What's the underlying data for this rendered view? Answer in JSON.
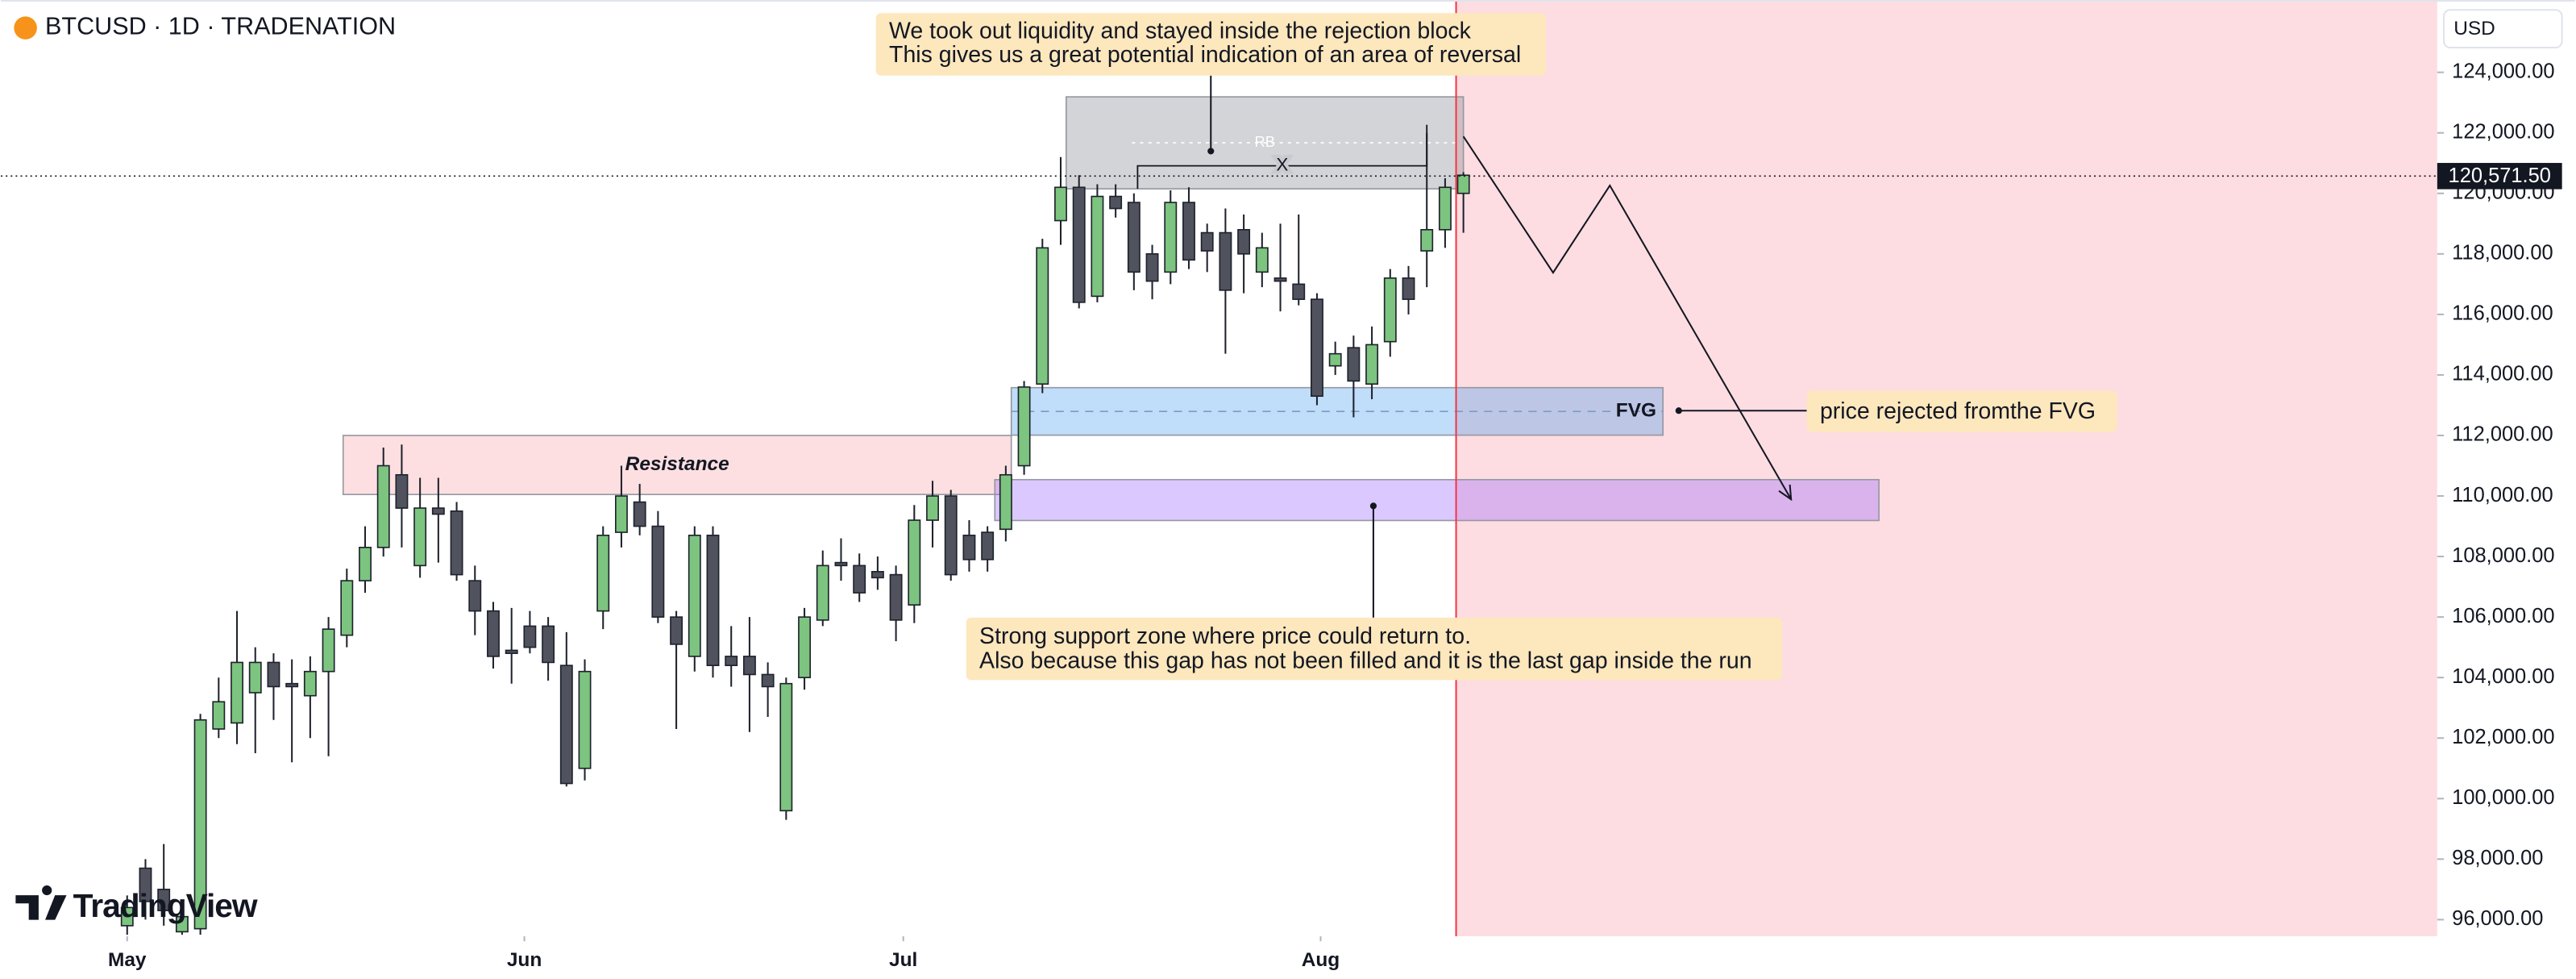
{
  "header": {
    "title": "BTCUSD · 1D · TRADENATION",
    "currency": "USD",
    "logo": "TradingView"
  },
  "chart_data": {
    "type": "candlestick",
    "up_color": "#7cc47f",
    "down_color": "#50535e",
    "outline_color": "#1e222d",
    "ohlc": {
      "open": [
        95800,
        97700,
        97000,
        95600,
        95700,
        102300,
        102500,
        103500,
        104500,
        103800,
        103400,
        104200,
        105400,
        107200,
        108300,
        110700,
        107700,
        109600,
        109500,
        107200,
        106200,
        104900,
        105700,
        105700,
        104400,
        101000,
        106200,
        108800,
        109800,
        109000,
        106000,
        104700,
        108700,
        104700,
        104700,
        104100,
        99600,
        104000,
        105900,
        107800,
        107700,
        107500,
        107400,
        106400,
        109200,
        110000,
        108700,
        108800,
        108900,
        111000,
        113700,
        119100,
        120200,
        116600,
        119900,
        119700,
        118000,
        117400,
        119700,
        118700,
        118700,
        118800,
        117400,
        117200,
        117000,
        116500,
        114300,
        114900,
        113700,
        115100,
        117200,
        118100,
        118800,
        120000
      ],
      "high": [
        96800,
        98000,
        98500,
        96300,
        102800,
        104000,
        106200,
        105000,
        104800,
        104600,
        104700,
        106000,
        107600,
        109000,
        111600,
        111700,
        110600,
        110600,
        109800,
        107700,
        106500,
        106300,
        106200,
        106000,
        105500,
        104600,
        109000,
        111000,
        110400,
        109500,
        106200,
        109000,
        109000,
        105700,
        106000,
        104500,
        104000,
        106300,
        108200,
        108600,
        108100,
        108000,
        107700,
        109700,
        110500,
        110200,
        109200,
        109000,
        111000,
        113800,
        118500,
        121200,
        120600,
        120300,
        120300,
        120000,
        118300,
        120100,
        120200,
        119000,
        119500,
        119300,
        118700,
        119000,
        119300,
        116700,
        115100,
        115300,
        115600,
        117500,
        117600,
        122000,
        120500,
        120700
      ],
      "low": [
        95500,
        96000,
        95800,
        95500,
        95500,
        102000,
        101800,
        101500,
        102600,
        101200,
        102000,
        101400,
        105000,
        106800,
        108000,
        108300,
        107300,
        107800,
        107200,
        105400,
        104300,
        103800,
        104800,
        103900,
        100400,
        100600,
        105600,
        108300,
        108700,
        105800,
        102300,
        104200,
        104000,
        103700,
        102200,
        102700,
        99300,
        103600,
        105700,
        107200,
        106500,
        106900,
        105200,
        105800,
        108300,
        107200,
        107500,
        107500,
        108500,
        110700,
        113400,
        118300,
        116200,
        116400,
        119200,
        116800,
        116500,
        117000,
        117500,
        117400,
        114700,
        116700,
        116900,
        116100,
        116300,
        113000,
        114000,
        112600,
        113200,
        114600,
        116000,
        116900,
        118200,
        118700
      ],
      "close": [
        96400,
        96600,
        96300,
        96100,
        102600,
        103200,
        104500,
        104500,
        103700,
        103700,
        104200,
        105600,
        107200,
        108300,
        111000,
        109600,
        109600,
        109400,
        107400,
        106200,
        104700,
        104800,
        105000,
        104500,
        100500,
        104200,
        108700,
        110000,
        109000,
        106000,
        105100,
        108700,
        104400,
        104400,
        104100,
        103700,
        103800,
        106000,
        107700,
        107700,
        106800,
        107300,
        105900,
        109200,
        110000,
        107400,
        107900,
        107900,
        110700,
        113600,
        118200,
        120200,
        116400,
        119900,
        119500,
        117400,
        117100,
        119700,
        117800,
        118100,
        116800,
        118000,
        118200,
        117100,
        116500,
        113300,
        114700,
        113800,
        115000,
        117200,
        116500,
        118800,
        120200,
        120600
      ]
    },
    "xlim": [
      -6.9,
      126.2
    ],
    "xticks": [
      {
        "value": 0,
        "label": "May"
      },
      {
        "value": 21.7,
        "label": "Jun"
      },
      {
        "value": 42.4,
        "label": "Jul"
      },
      {
        "value": 65.2,
        "label": "Aug"
      }
    ],
    "ylim": [
      95450,
      126390
    ],
    "yticks": [
      {
        "value": 96000,
        "label": "96,000.00"
      },
      {
        "value": 98000,
        "label": "98,000.00"
      },
      {
        "value": 100000,
        "label": "100,000.00"
      },
      {
        "value": 102000,
        "label": "102,000.00"
      },
      {
        "value": 104000,
        "label": "104,000.00"
      },
      {
        "value": 106000,
        "label": "106,000.00"
      },
      {
        "value": 108000,
        "label": "108,000.00"
      },
      {
        "value": 110000,
        "label": "110,000.00"
      },
      {
        "value": 112000,
        "label": "112,000.00"
      },
      {
        "value": 114000,
        "label": "114,000.00"
      },
      {
        "value": 116000,
        "label": "116,000.00"
      },
      {
        "value": 118000,
        "label": "118,000.00"
      },
      {
        "value": 120000,
        "label": "120,000.00"
      },
      {
        "value": 122000,
        "label": "122,000.00"
      },
      {
        "value": 124000,
        "label": "124,000.00"
      }
    ],
    "last_price": {
      "value": 120571.5,
      "label": "120,571.50"
    },
    "highlight_from": 72.6,
    "zones": [
      {
        "label": "Resistance",
        "x": [
          11.8,
          48.3
        ],
        "y": [
          112000,
          110050
        ],
        "color": "rgba(242,54,69,0.16)"
      },
      {
        "x": [
          47.4,
          95.7
        ],
        "y": [
          110540,
          109190
        ],
        "color": "rgba(160,110,255,0.38)"
      },
      {
        "label": "FVG",
        "x": [
          48.3,
          83.9
        ],
        "y": [
          113580,
          112010
        ],
        "color": "rgba(60,150,240,0.32)"
      },
      {
        "label": "RB",
        "x": [
          51.3,
          73.0
        ],
        "y": [
          123190,
          120150
        ],
        "color": "rgba(120,123,134,0.33)"
      }
    ],
    "x_line": {
      "label": "X",
      "x": [
        55.2,
        71.0
      ],
      "y": 120910
    },
    "projection": {
      "x": [
        73,
        77.9,
        81,
        90.9
      ],
      "y": [
        121880,
        117380,
        120260,
        109890
      ]
    },
    "annotations": [
      [
        "We took out liquidity and stayed inside the rejection block",
        "This gives us a great potential indication of an area of reversal"
      ],
      [
        "price rejected fromthe FVG"
      ],
      [
        "Strong support zone where price could return to.",
        "Also because this gap has not been filled and it is the last gap inside the run"
      ]
    ]
  }
}
